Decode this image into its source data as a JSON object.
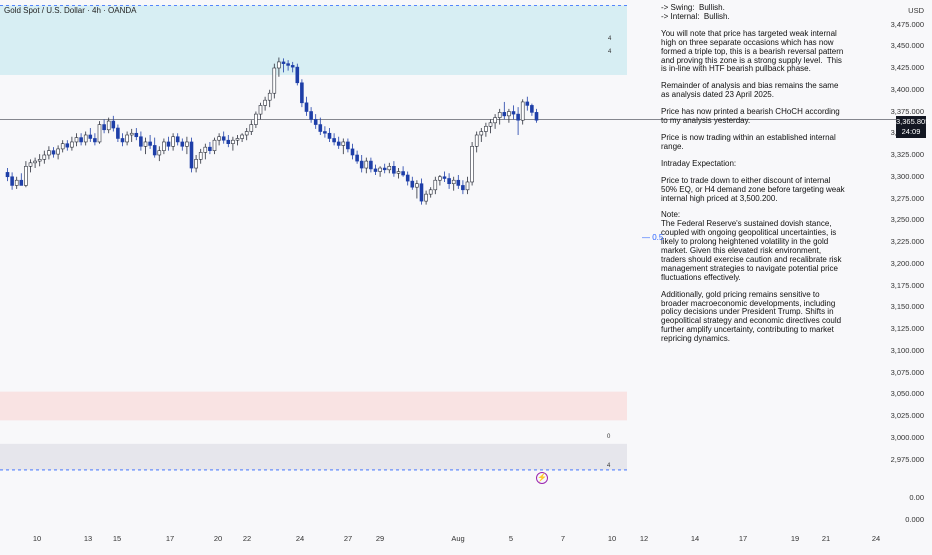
{
  "header": {
    "title": "Gold Spot / U.S. Dollar · 4h · OANDA"
  },
  "currency": "USD",
  "price_tag": {
    "price": "3,365.805",
    "countdown": "24:09"
  },
  "fib_label": "0.5",
  "zone_markers": [
    "4",
    "4",
    "0",
    "4"
  ],
  "notes": [
    "-> Swing:  Bullish.",
    "-> Internal:  Bullish.",
    "You will note that price has targeted weak internal high on three separate occasions which has now formed a triple top, this is a bearish reversal pattern and proving this zone is a strong supply level.  This is in-line with HTF bearish pullback phase.",
    "Remainder of analysis and bias remains the same as analysis dated 23 April 2025.",
    "Price has now printed a bearish CHoCH according to my analysis yesterday.",
    "Price is now trading within an established internal range.",
    "Intraday Expectation:",
    "Price to trade down to either discount of internal 50% EQ, or H4 demand zone before targeting weak internal high priced at 3,500.200.",
    "Note:\nThe Federal Reserve's sustained dovish stance, coupled with ongoing geopolitical uncertainties, is likely to prolong heightened volatility in the gold market. Given this elevated risk environment, traders should exercise caution and recalibrate risk management strategies to navigate potential price fluctuations effectively.",
    "Additionally, gold pricing remains sensitive to broader macroeconomic developments, including policy decisions under President Trump. Shifts in geopolitical strategy and economic directives could further amplify uncertainty, contributing to market repricing dynamics."
  ],
  "colors": {
    "bull": "#2a2e39",
    "bear": "#1e3fa8",
    "supply_zone": "#d7eef3",
    "demand_zone": "#f9e3e3",
    "lower_zone": "#e6e6ec",
    "dashed_line": "#2962ff",
    "price_line": "#131722"
  },
  "chart_data": {
    "type": "candlestick",
    "title": "Gold Spot / U.S. Dollar · 4h · OANDA",
    "ylim": [
      2950,
      3500
    ],
    "y_ticks": [
      2975,
      3000,
      3025,
      3050,
      3075,
      3100,
      3125,
      3150,
      3175,
      3200,
      3225,
      3250,
      3275,
      3300,
      3325,
      3350,
      3375,
      3400,
      3425,
      3450,
      3475
    ],
    "y_tick_labels": [
      "2,975.000",
      "3,000.000",
      "3,025.000",
      "3,050.000",
      "3,075.000",
      "3,100.000",
      "3,125.000",
      "3,150.000",
      "3,175.000",
      "3,200.000",
      "3,225.000",
      "3,250.000",
      "3,275.000",
      "3,300.000",
      "3,325.000",
      "3,350.000",
      "3,375.000",
      "3,400.000",
      "3,425.000",
      "3,450.000",
      "3,475.000"
    ],
    "y_extra_labels": [
      "0.00",
      "0.000"
    ],
    "x_tick_labels": [
      "10",
      "13",
      "15",
      "17",
      "20",
      "22",
      "24",
      "27",
      "29",
      "Aug",
      "5",
      "7",
      "10",
      "12",
      "14",
      "17",
      "19",
      "21",
      "24"
    ],
    "current_price": 3365.805,
    "fib_level": {
      "label": "0.5",
      "price": 3230
    },
    "zones": [
      {
        "name": "supply",
        "from": 3417,
        "to": 3497
      },
      {
        "name": "demand",
        "from": 3020,
        "to": 3053
      },
      {
        "name": "lower",
        "from": 2963,
        "to": 2993
      }
    ],
    "dashed_levels": [
      3497,
      2963
    ],
    "candles": [
      [
        3305,
        3310,
        3295,
        3300
      ],
      [
        3300,
        3305,
        3285,
        3290
      ],
      [
        3290,
        3300,
        3286,
        3296
      ],
      [
        3296,
        3304,
        3290,
        3290
      ],
      [
        3290,
        3318,
        3288,
        3312
      ],
      [
        3312,
        3320,
        3305,
        3316
      ],
      [
        3316,
        3322,
        3310,
        3318
      ],
      [
        3318,
        3326,
        3312,
        3320
      ],
      [
        3320,
        3330,
        3315,
        3325
      ],
      [
        3325,
        3335,
        3320,
        3330
      ],
      [
        3330,
        3334,
        3322,
        3326
      ],
      [
        3326,
        3336,
        3320,
        3332
      ],
      [
        3332,
        3342,
        3328,
        3338
      ],
      [
        3338,
        3342,
        3330,
        3334
      ],
      [
        3334,
        3346,
        3330,
        3340
      ],
      [
        3340,
        3350,
        3335,
        3345
      ],
      [
        3345,
        3350,
        3336,
        3340
      ],
      [
        3340,
        3352,
        3336,
        3348
      ],
      [
        3348,
        3356,
        3340,
        3344
      ],
      [
        3344,
        3350,
        3336,
        3340
      ],
      [
        3340,
        3364,
        3338,
        3360
      ],
      [
        3360,
        3366,
        3350,
        3354
      ],
      [
        3354,
        3368,
        3350,
        3364
      ],
      [
        3364,
        3370,
        3352,
        3356
      ],
      [
        3356,
        3360,
        3340,
        3344
      ],
      [
        3344,
        3350,
        3335,
        3340
      ],
      [
        3340,
        3352,
        3336,
        3348
      ],
      [
        3348,
        3355,
        3340,
        3350
      ],
      [
        3350,
        3356,
        3342,
        3346
      ],
      [
        3346,
        3352,
        3330,
        3335
      ],
      [
        3335,
        3345,
        3326,
        3340
      ],
      [
        3340,
        3348,
        3332,
        3336
      ],
      [
        3336,
        3345,
        3322,
        3325
      ],
      [
        3325,
        3335,
        3318,
        3330
      ],
      [
        3330,
        3344,
        3326,
        3340
      ],
      [
        3340,
        3346,
        3330,
        3335
      ],
      [
        3335,
        3350,
        3330,
        3346
      ],
      [
        3346,
        3350,
        3336,
        3340
      ],
      [
        3340,
        3344,
        3330,
        3335
      ],
      [
        3335,
        3346,
        3326,
        3340
      ],
      [
        3340,
        3345,
        3305,
        3310
      ],
      [
        3310,
        3325,
        3305,
        3320
      ],
      [
        3320,
        3332,
        3315,
        3328
      ],
      [
        3328,
        3338,
        3320,
        3334
      ],
      [
        3334,
        3340,
        3326,
        3330
      ],
      [
        3330,
        3345,
        3326,
        3342
      ],
      [
        3342,
        3350,
        3336,
        3346
      ],
      [
        3346,
        3352,
        3338,
        3342
      ],
      [
        3342,
        3348,
        3334,
        3338
      ],
      [
        3338,
        3346,
        3330,
        3342
      ],
      [
        3342,
        3348,
        3336,
        3344
      ],
      [
        3344,
        3350,
        3340,
        3348
      ],
      [
        3348,
        3356,
        3342,
        3352
      ],
      [
        3352,
        3365,
        3348,
        3360
      ],
      [
        3360,
        3375,
        3356,
        3372
      ],
      [
        3372,
        3385,
        3366,
        3382
      ],
      [
        3382,
        3392,
        3376,
        3388
      ],
      [
        3388,
        3400,
        3380,
        3396
      ],
      [
        3396,
        3430,
        3390,
        3425
      ],
      [
        3425,
        3437,
        3415,
        3432
      ],
      [
        3432,
        3436,
        3420,
        3430
      ],
      [
        3430,
        3434,
        3422,
        3428
      ],
      [
        3428,
        3432,
        3420,
        3426
      ],
      [
        3426,
        3430,
        3405,
        3408
      ],
      [
        3408,
        3412,
        3380,
        3385
      ],
      [
        3385,
        3392,
        3370,
        3375
      ],
      [
        3375,
        3380,
        3362,
        3366
      ],
      [
        3366,
        3372,
        3355,
        3360
      ],
      [
        3360,
        3368,
        3348,
        3352
      ],
      [
        3352,
        3358,
        3345,
        3350
      ],
      [
        3350,
        3356,
        3340,
        3344
      ],
      [
        3344,
        3350,
        3336,
        3340
      ],
      [
        3340,
        3346,
        3332,
        3336
      ],
      [
        3336,
        3344,
        3326,
        3340
      ],
      [
        3340,
        3344,
        3328,
        3332
      ],
      [
        3332,
        3338,
        3320,
        3325
      ],
      [
        3325,
        3330,
        3315,
        3318
      ],
      [
        3318,
        3325,
        3305,
        3310
      ],
      [
        3310,
        3322,
        3304,
        3318
      ],
      [
        3318,
        3322,
        3305,
        3309
      ],
      [
        3309,
        3314,
        3302,
        3306
      ],
      [
        3306,
        3312,
        3300,
        3310
      ],
      [
        3310,
        3315,
        3304,
        3308
      ],
      [
        3308,
        3316,
        3304,
        3312
      ],
      [
        3312,
        3318,
        3300,
        3304
      ],
      [
        3304,
        3310,
        3298,
        3306
      ],
      [
        3306,
        3312,
        3300,
        3302
      ],
      [
        3302,
        3306,
        3290,
        3295
      ],
      [
        3295,
        3300,
        3285,
        3288
      ],
      [
        3288,
        3296,
        3275,
        3292
      ],
      [
        3292,
        3298,
        3268,
        3272
      ],
      [
        3272,
        3284,
        3268,
        3280
      ],
      [
        3280,
        3288,
        3276,
        3285
      ],
      [
        3285,
        3300,
        3280,
        3296
      ],
      [
        3296,
        3302,
        3290,
        3300
      ],
      [
        3300,
        3306,
        3294,
        3298
      ],
      [
        3298,
        3304,
        3286,
        3292
      ],
      [
        3292,
        3300,
        3284,
        3296
      ],
      [
        3296,
        3302,
        3286,
        3290
      ],
      [
        3290,
        3296,
        3280,
        3285
      ],
      [
        3285,
        3300,
        3280,
        3294
      ],
      [
        3294,
        3340,
        3290,
        3335
      ],
      [
        3335,
        3352,
        3328,
        3348
      ],
      [
        3348,
        3356,
        3340,
        3352
      ],
      [
        3352,
        3362,
        3346,
        3358
      ],
      [
        3358,
        3366,
        3350,
        3362
      ],
      [
        3362,
        3372,
        3355,
        3368
      ],
      [
        3368,
        3378,
        3360,
        3374
      ],
      [
        3374,
        3386,
        3366,
        3370
      ],
      [
        3370,
        3378,
        3362,
        3375
      ],
      [
        3375,
        3382,
        3366,
        3372
      ],
      [
        3372,
        3380,
        3348,
        3365
      ],
      [
        3365,
        3389,
        3360,
        3386
      ],
      [
        3386,
        3392,
        3376,
        3382
      ],
      [
        3382,
        3384,
        3370,
        3374
      ],
      [
        3374,
        3378,
        3362,
        3365
      ]
    ]
  }
}
